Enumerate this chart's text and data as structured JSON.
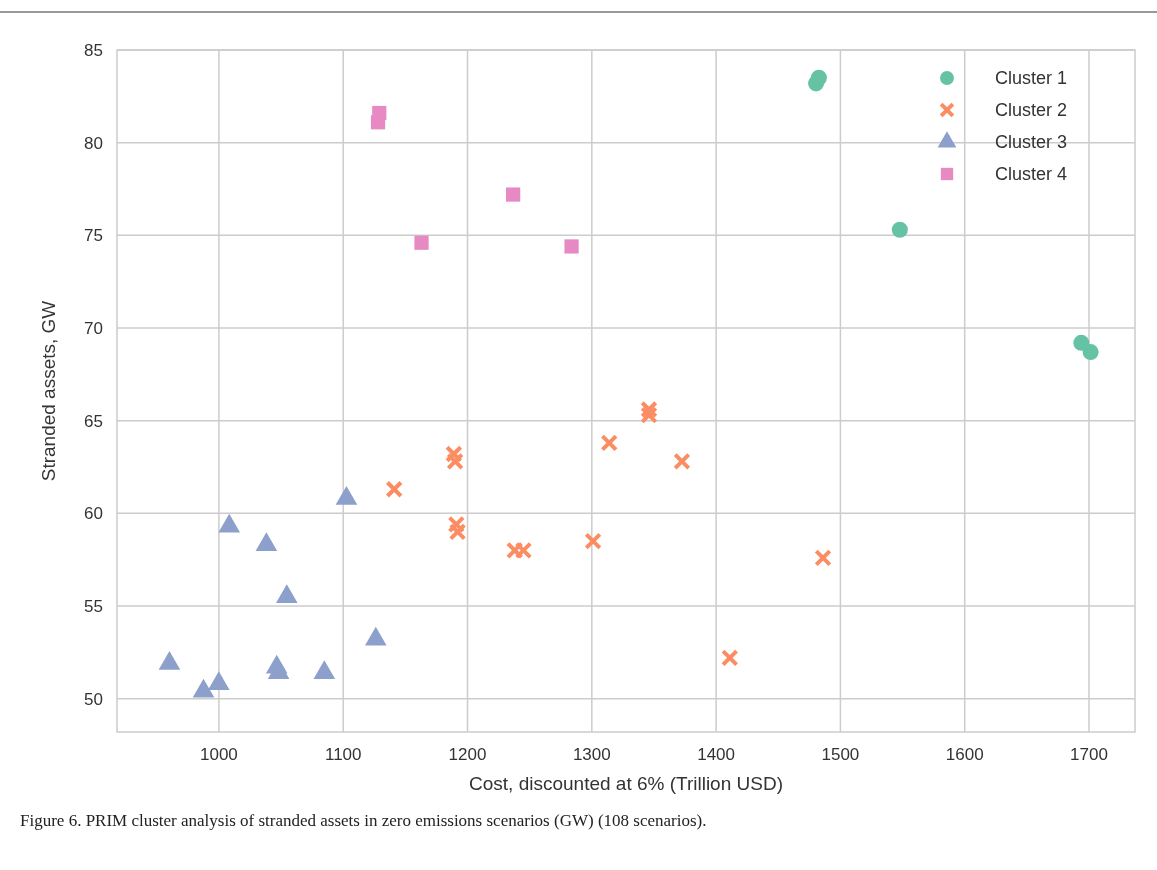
{
  "chart_data": {
    "type": "scatter",
    "xlabel": "Cost, discounted at 6% (Trillion USD)",
    "ylabel": "Stranded assets, GW",
    "xlim": [
      918,
      1737
    ],
    "xticks": [
      1000,
      1100,
      1200,
      1300,
      1400,
      1500,
      1600,
      1700
    ],
    "ylim": [
      48.2,
      85
    ],
    "yticks": [
      50,
      55,
      60,
      65,
      70,
      75,
      80,
      85
    ],
    "grid": true,
    "legend": "top right",
    "annotations": [
      "Figure 6. PRIM cluster analysis of stranded assets in zero emissions scenarios (GW) (108 scenarios)."
    ],
    "series": [
      {
        "name": "Cluster 1",
        "color": "#66c2a5",
        "marker": "circle",
        "x": [
          1482.7,
          1480.4,
          1547.8,
          1693.8,
          1701.3
        ],
        "values": [
          83.5,
          83.2,
          75.3,
          69.2,
          68.7
        ]
      },
      {
        "name": "Cluster 2",
        "color": "#fc8d62",
        "marker": "cross",
        "x": [
          1141,
          1189,
          1190,
          1191,
          1192,
          1238,
          1245,
          1301,
          1314,
          1346,
          1346,
          1372.5,
          1486,
          1411
        ],
        "values": [
          61.3,
          63.2,
          62.8,
          59.4,
          59.0,
          58.0,
          58.0,
          58.5,
          63.8,
          65.6,
          65.3,
          62.8,
          57.6,
          52.2
        ]
      },
      {
        "name": "Cluster 3",
        "color": "#8da0cb",
        "marker": "triangle",
        "x": [
          1102.6,
          1008.3,
          1038.2,
          1054.6,
          1126.2,
          960.2,
          1046.5,
          1048,
          1084.8,
          999.9,
          987.6
        ],
        "values": [
          60.8,
          59.3,
          58.3,
          55.5,
          53.2,
          51.9,
          51.7,
          51.4,
          51.4,
          50.8,
          50.4
        ]
      },
      {
        "name": "Cluster 4",
        "color": "#e78ac3",
        "marker": "square",
        "x": [
          1129,
          1128,
          1236.7,
          1163,
          1283.7
        ],
        "values": [
          81.6,
          81.1,
          77.2,
          74.6,
          74.4
        ]
      }
    ]
  }
}
